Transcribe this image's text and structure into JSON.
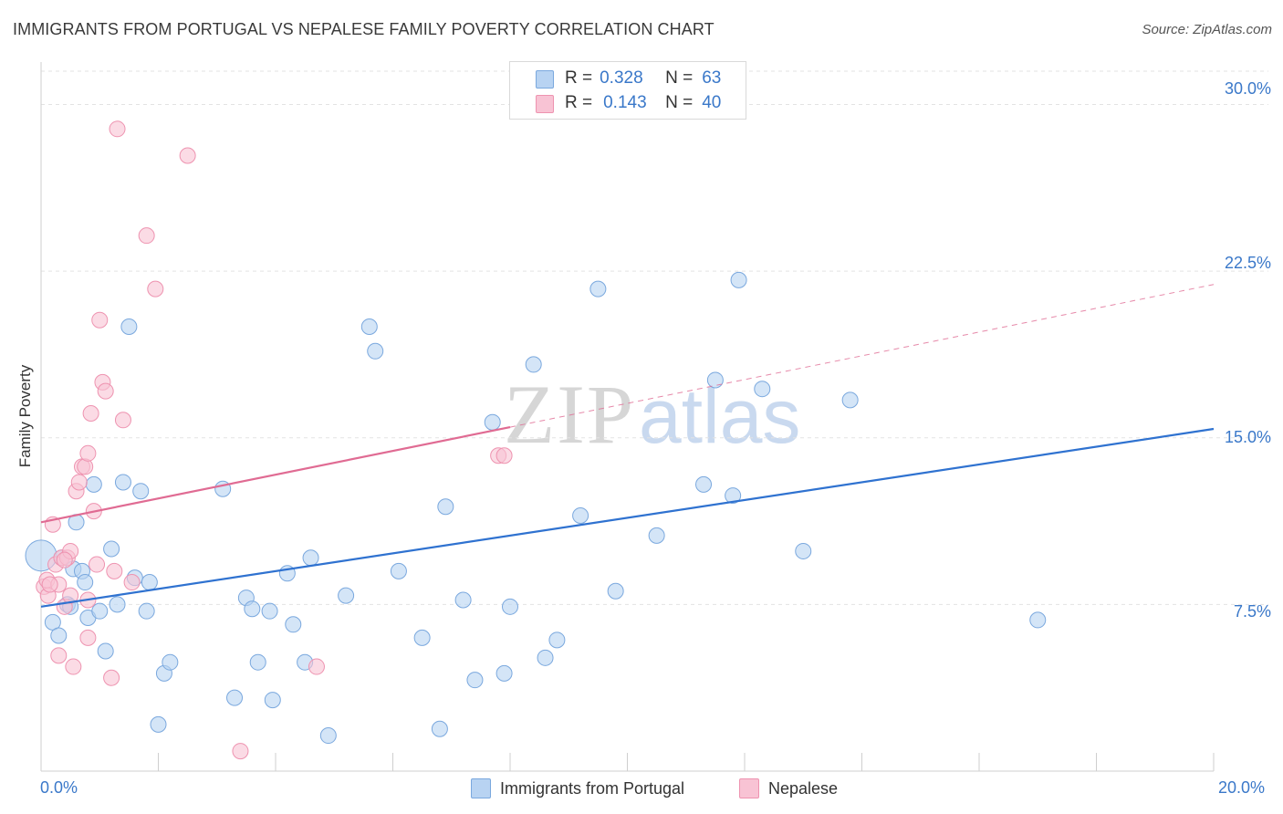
{
  "title": "IMMIGRANTS FROM PORTUGAL VS NEPALESE FAMILY POVERTY CORRELATION CHART",
  "source": "Source: ZipAtlas.com",
  "watermark": {
    "zip": "ZIP",
    "atlas": "atlas"
  },
  "legend": {
    "r_label": "R =",
    "n_label": "N =",
    "rows": [
      {
        "r": "0.328",
        "n": "63"
      },
      {
        "r": "0.143",
        "n": "40"
      }
    ]
  },
  "colors": {
    "blue_fill": "#b8d3f2",
    "blue_stroke": "#7aa8de",
    "blue_line": "#2f72d0",
    "pink_fill": "#f8c3d4",
    "pink_stroke": "#ee93b0",
    "pink_line": "#e06b93",
    "tick_text": "#3a78c9",
    "grid": "#e3e3e3"
  },
  "chart_data": {
    "type": "scatter",
    "title": "IMMIGRANTS FROM PORTUGAL VS NEPALESE FAMILY POVERTY CORRELATION CHART",
    "xlabel": "",
    "ylabel": "Family Poverty",
    "xlim": [
      0,
      20
    ],
    "ylim": [
      0,
      31.5
    ],
    "x_tick_labels": [
      "0.0%",
      "20.0%"
    ],
    "y_ticks": [
      7.5,
      15.0,
      22.5,
      30.0
    ],
    "y_tick_labels": [
      "7.5%",
      "15.0%",
      "22.5%",
      "30.0%"
    ],
    "series": [
      {
        "name": "Immigrants from Portugal",
        "color": "blue",
        "R": 0.328,
        "N": 63,
        "trend": {
          "x0": 0,
          "y0": 7.4,
          "x1": 20,
          "y1": 15.4,
          "solid_until": 20
        },
        "points": [
          {
            "x": 0.0,
            "y": 9.7,
            "big": true
          },
          {
            "x": 0.2,
            "y": 6.7
          },
          {
            "x": 0.3,
            "y": 6.1
          },
          {
            "x": 0.35,
            "y": 9.6
          },
          {
            "x": 0.45,
            "y": 7.5
          },
          {
            "x": 0.5,
            "y": 7.4
          },
          {
            "x": 0.55,
            "y": 9.1
          },
          {
            "x": 0.6,
            "y": 11.2
          },
          {
            "x": 0.7,
            "y": 9.0
          },
          {
            "x": 0.75,
            "y": 8.5
          },
          {
            "x": 0.8,
            "y": 6.9
          },
          {
            "x": 0.9,
            "y": 12.9
          },
          {
            "x": 1.0,
            "y": 7.2
          },
          {
            "x": 1.1,
            "y": 5.4
          },
          {
            "x": 1.2,
            "y": 10.0
          },
          {
            "x": 1.3,
            "y": 7.5
          },
          {
            "x": 1.4,
            "y": 13.0
          },
          {
            "x": 1.5,
            "y": 20.0
          },
          {
            "x": 1.6,
            "y": 8.7
          },
          {
            "x": 1.7,
            "y": 12.6
          },
          {
            "x": 1.8,
            "y": 7.2
          },
          {
            "x": 1.85,
            "y": 8.5
          },
          {
            "x": 2.0,
            "y": 2.1
          },
          {
            "x": 2.1,
            "y": 4.4
          },
          {
            "x": 2.2,
            "y": 4.9
          },
          {
            "x": 3.1,
            "y": 12.7
          },
          {
            "x": 3.3,
            "y": 3.3
          },
          {
            "x": 3.5,
            "y": 7.8
          },
          {
            "x": 3.6,
            "y": 7.3
          },
          {
            "x": 3.7,
            "y": 4.9
          },
          {
            "x": 3.9,
            "y": 7.2
          },
          {
            "x": 3.95,
            "y": 3.2
          },
          {
            "x": 4.2,
            "y": 8.9
          },
          {
            "x": 4.3,
            "y": 6.6
          },
          {
            "x": 4.5,
            "y": 4.9
          },
          {
            "x": 4.6,
            "y": 9.6
          },
          {
            "x": 4.9,
            "y": 1.6
          },
          {
            "x": 5.2,
            "y": 7.9
          },
          {
            "x": 5.6,
            "y": 20.0
          },
          {
            "x": 5.7,
            "y": 18.9
          },
          {
            "x": 6.1,
            "y": 9.0
          },
          {
            "x": 6.5,
            "y": 6.0
          },
          {
            "x": 6.8,
            "y": 1.9
          },
          {
            "x": 6.9,
            "y": 11.9
          },
          {
            "x": 7.2,
            "y": 7.7
          },
          {
            "x": 7.4,
            "y": 4.1
          },
          {
            "x": 7.7,
            "y": 15.7
          },
          {
            "x": 7.9,
            "y": 4.4
          },
          {
            "x": 8.0,
            "y": 7.4
          },
          {
            "x": 8.4,
            "y": 18.3
          },
          {
            "x": 8.6,
            "y": 5.1
          },
          {
            "x": 8.8,
            "y": 5.9
          },
          {
            "x": 9.2,
            "y": 11.5
          },
          {
            "x": 9.5,
            "y": 21.7
          },
          {
            "x": 9.8,
            "y": 8.1
          },
          {
            "x": 10.5,
            "y": 10.6
          },
          {
            "x": 11.3,
            "y": 12.9
          },
          {
            "x": 11.5,
            "y": 17.6
          },
          {
            "x": 11.8,
            "y": 12.4
          },
          {
            "x": 11.9,
            "y": 22.1
          },
          {
            "x": 12.3,
            "y": 17.2
          },
          {
            "x": 13.0,
            "y": 9.9
          },
          {
            "x": 13.8,
            "y": 16.7
          },
          {
            "x": 17.0,
            "y": 6.8
          }
        ]
      },
      {
        "name": "Nepalese",
        "color": "pink",
        "R": 0.143,
        "N": 40,
        "trend": {
          "x0": 0,
          "y0": 11.2,
          "x1": 20,
          "y1": 21.9,
          "solid_until": 8.0
        },
        "points": [
          {
            "x": 0.05,
            "y": 8.3
          },
          {
            "x": 0.1,
            "y": 8.6
          },
          {
            "x": 0.12,
            "y": 7.9
          },
          {
            "x": 0.2,
            "y": 11.1
          },
          {
            "x": 0.25,
            "y": 9.3
          },
          {
            "x": 0.3,
            "y": 8.4
          },
          {
            "x": 0.3,
            "y": 5.2
          },
          {
            "x": 0.35,
            "y": 9.6
          },
          {
            "x": 0.4,
            "y": 7.4
          },
          {
            "x": 0.45,
            "y": 9.6
          },
          {
            "x": 0.5,
            "y": 9.9
          },
          {
            "x": 0.5,
            "y": 7.9
          },
          {
            "x": 0.55,
            "y": 4.7
          },
          {
            "x": 0.6,
            "y": 12.6
          },
          {
            "x": 0.65,
            "y": 13.0
          },
          {
            "x": 0.7,
            "y": 13.7
          },
          {
            "x": 0.75,
            "y": 13.7
          },
          {
            "x": 0.8,
            "y": 14.3
          },
          {
            "x": 0.8,
            "y": 7.7
          },
          {
            "x": 0.8,
            "y": 6.0
          },
          {
            "x": 0.85,
            "y": 16.1
          },
          {
            "x": 0.9,
            "y": 11.7
          },
          {
            "x": 0.95,
            "y": 9.3
          },
          {
            "x": 1.0,
            "y": 20.3
          },
          {
            "x": 1.05,
            "y": 17.5
          },
          {
            "x": 1.1,
            "y": 17.1
          },
          {
            "x": 1.2,
            "y": 4.2
          },
          {
            "x": 1.25,
            "y": 9.0
          },
          {
            "x": 1.3,
            "y": 28.9
          },
          {
            "x": 1.4,
            "y": 15.8
          },
          {
            "x": 1.55,
            "y": 8.5
          },
          {
            "x": 1.8,
            "y": 24.1
          },
          {
            "x": 1.95,
            "y": 21.7
          },
          {
            "x": 2.5,
            "y": 27.7
          },
          {
            "x": 3.4,
            "y": 0.9
          },
          {
            "x": 4.7,
            "y": 4.7
          },
          {
            "x": 7.8,
            "y": 14.2
          },
          {
            "x": 7.9,
            "y": 14.2
          },
          {
            "x": 0.15,
            "y": 8.4
          },
          {
            "x": 0.4,
            "y": 9.5
          }
        ]
      }
    ]
  },
  "bottom_legend": [
    "Immigrants from Portugal",
    "Nepalese"
  ]
}
